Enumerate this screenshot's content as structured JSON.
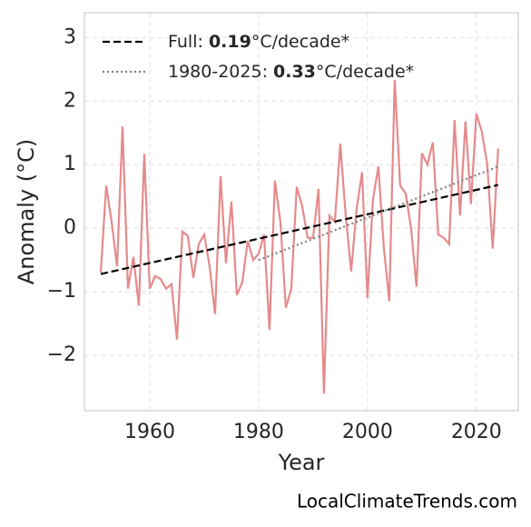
{
  "chart_data": {
    "type": "line",
    "xlabel": "Year",
    "ylabel": "Anomaly (°C)",
    "footer": "LocalClimateTrends.com",
    "xlim": [
      1948,
      2027.7
    ],
    "ylim": [
      -2.87,
      3.39
    ],
    "xticks": [
      1960,
      1980,
      2000,
      2020
    ],
    "yticks": [
      {
        "value": -2,
        "label": "−2"
      },
      {
        "value": -1,
        "label": "−1"
      },
      0,
      1,
      2,
      3
    ],
    "grid": true,
    "legend": "upper left",
    "series": [
      {
        "color": "#e58a8c",
        "style": "solid",
        "x": [
          1951,
          1952,
          1953,
          1954,
          1955,
          1956,
          1957,
          1958,
          1959,
          1960,
          1961,
          1962,
          1963,
          1964,
          1965,
          1966,
          1967,
          1968,
          1969,
          1970,
          1971,
          1972,
          1973,
          1974,
          1975,
          1976,
          1977,
          1978,
          1979,
          1980,
          1981,
          1982,
          1983,
          1984,
          1985,
          1986,
          1987,
          1988,
          1989,
          1990,
          1991,
          1992,
          1993,
          1994,
          1995,
          1996,
          1997,
          1998,
          1999,
          2000,
          2001,
          2002,
          2003,
          2004,
          2005,
          2006,
          2007,
          2008,
          2009,
          2010,
          2011,
          2012,
          2013,
          2014,
          2015,
          2016,
          2017,
          2018,
          2019,
          2020,
          2021,
          2022,
          2023,
          2024
        ],
        "values": [
          -0.7,
          0.67,
          0.1,
          -0.6,
          1.6,
          -0.95,
          -0.45,
          -1.22,
          1.17,
          -0.95,
          -0.75,
          -0.8,
          -0.95,
          -0.88,
          -1.75,
          -0.05,
          -0.12,
          -0.78,
          -0.25,
          -0.1,
          -0.6,
          -1.35,
          0.82,
          -0.55,
          0.42,
          -1.05,
          -0.85,
          -0.2,
          -0.5,
          -0.4,
          -0.1,
          -1.6,
          0.75,
          0.1,
          -1.25,
          -0.95,
          0.65,
          0.35,
          -0.15,
          -0.15,
          0.62,
          -2.6,
          0.2,
          0.1,
          1.33,
          0.2,
          -0.68,
          0.3,
          0.88,
          -1.1,
          0.45,
          0.97,
          -0.3,
          -1.15,
          2.33,
          0.67,
          0.55,
          0.0,
          -0.92,
          1.18,
          1.0,
          1.35,
          -0.1,
          -0.15,
          -0.25,
          1.7,
          0.2,
          1.68,
          0.38,
          1.8,
          1.52,
          1.0,
          -0.32,
          1.25
        ]
      },
      {
        "name": "Full: 0.19°C/decade*",
        "color": "#000000",
        "style": "dashed",
        "x": [
          1951,
          2024
        ],
        "values": [
          -0.72,
          0.68
        ]
      },
      {
        "name": "1980-2025: 0.33°C/decade*",
        "color": "#808080",
        "style": "dotted",
        "x": [
          1980,
          2024
        ],
        "values": [
          -0.5,
          0.97
        ]
      }
    ]
  }
}
